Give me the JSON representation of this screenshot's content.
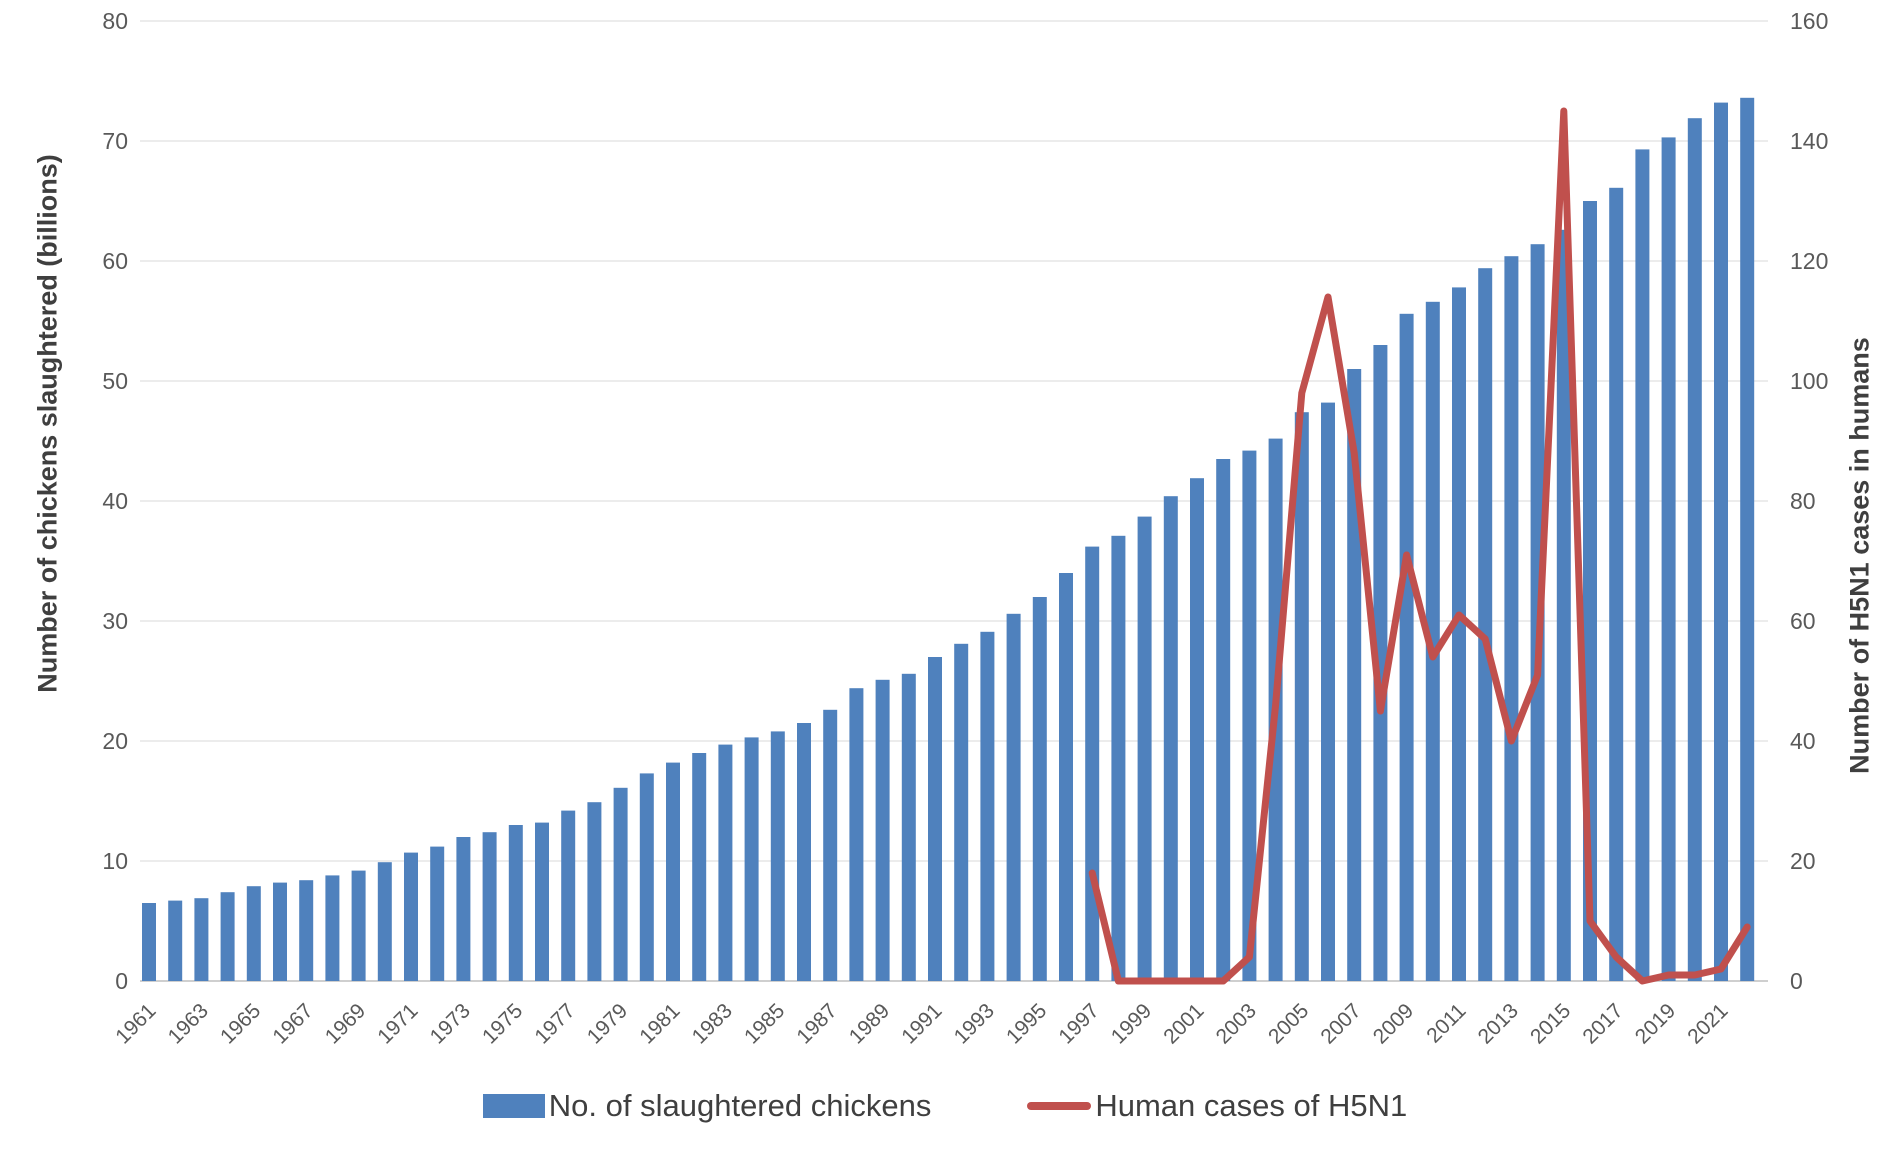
{
  "chart_data": {
    "type": "combo-bar-line",
    "title": "",
    "years": [
      1961,
      1962,
      1963,
      1964,
      1965,
      1966,
      1967,
      1968,
      1969,
      1970,
      1971,
      1972,
      1973,
      1974,
      1975,
      1976,
      1977,
      1978,
      1979,
      1980,
      1981,
      1982,
      1983,
      1984,
      1985,
      1986,
      1987,
      1988,
      1989,
      1990,
      1991,
      1992,
      1993,
      1994,
      1995,
      1996,
      1997,
      1998,
      1999,
      2000,
      2001,
      2002,
      2003,
      2004,
      2005,
      2006,
      2007,
      2008,
      2009,
      2010,
      2011,
      2012,
      2013,
      2014,
      2015,
      2016,
      2017,
      2018,
      2019,
      2020,
      2021,
      2022
    ],
    "series": [
      {
        "name": "No. of slaughtered chickens",
        "type": "bar",
        "axis": "left",
        "color": "#4F81BD",
        "values": [
          6.5,
          6.7,
          6.9,
          7.4,
          7.9,
          8.2,
          8.4,
          8.8,
          9.2,
          9.9,
          10.7,
          11.2,
          12.0,
          12.4,
          13.0,
          13.2,
          14.2,
          14.9,
          16.1,
          17.3,
          18.2,
          19.0,
          19.7,
          20.3,
          20.8,
          21.5,
          22.6,
          24.4,
          25.1,
          25.6,
          27.0,
          28.1,
          29.1,
          30.6,
          32.0,
          34.0,
          36.2,
          37.1,
          38.7,
          40.4,
          41.9,
          43.5,
          44.2,
          45.2,
          47.4,
          48.2,
          51.0,
          53.0,
          55.6,
          56.6,
          57.8,
          59.4,
          60.4,
          61.4,
          62.6,
          65.0,
          66.1,
          69.3,
          70.3,
          71.9,
          73.2,
          73.6
        ]
      },
      {
        "name": "Human cases of H5N1",
        "type": "line",
        "axis": "right",
        "color": "#C0504D",
        "start_year": 1997,
        "values": [
          18,
          0,
          0,
          0,
          0,
          0,
          4,
          46,
          98,
          114,
          88,
          45,
          71,
          54,
          61,
          57,
          40,
          51,
          145,
          10,
          4,
          0,
          1,
          1,
          2,
          9
        ]
      }
    ],
    "left_axis": {
      "title": "Number of chickens slaughtered (billions)",
      "min": 0,
      "max": 80,
      "tick_step": 10,
      "ticks": [
        0,
        10,
        20,
        30,
        40,
        50,
        60,
        70,
        80
      ]
    },
    "right_axis": {
      "title": "Number of H5N1 cases in humans",
      "min": 0,
      "max": 160,
      "tick_step": 20,
      "ticks": [
        0,
        20,
        40,
        60,
        80,
        100,
        120,
        140,
        160
      ]
    },
    "x_axis": {
      "tick_years": [
        1961,
        1963,
        1965,
        1967,
        1969,
        1971,
        1973,
        1975,
        1977,
        1979,
        1981,
        1983,
        1985,
        1987,
        1989,
        1991,
        1993,
        1995,
        1997,
        1999,
        2001,
        2003,
        2005,
        2007,
        2009,
        2011,
        2013,
        2015,
        2017,
        2019,
        2021
      ],
      "label_rotation": -45
    },
    "grid": true,
    "legend_position": "bottom"
  },
  "legend": {
    "items": [
      {
        "label": "No. of slaughtered chickens",
        "swatch": "bar",
        "color": "#4F81BD"
      },
      {
        "label": "Human cases of H5N1",
        "swatch": "line",
        "color": "#C0504D"
      }
    ]
  },
  "colors": {
    "bar": "#4F81BD",
    "line": "#C0504D",
    "gridline": "#D9D9D9",
    "axis_line": "#BFBFBF",
    "tick_text": "#595959",
    "title_text": "#3F3F3F",
    "background": "#FFFFFF"
  }
}
